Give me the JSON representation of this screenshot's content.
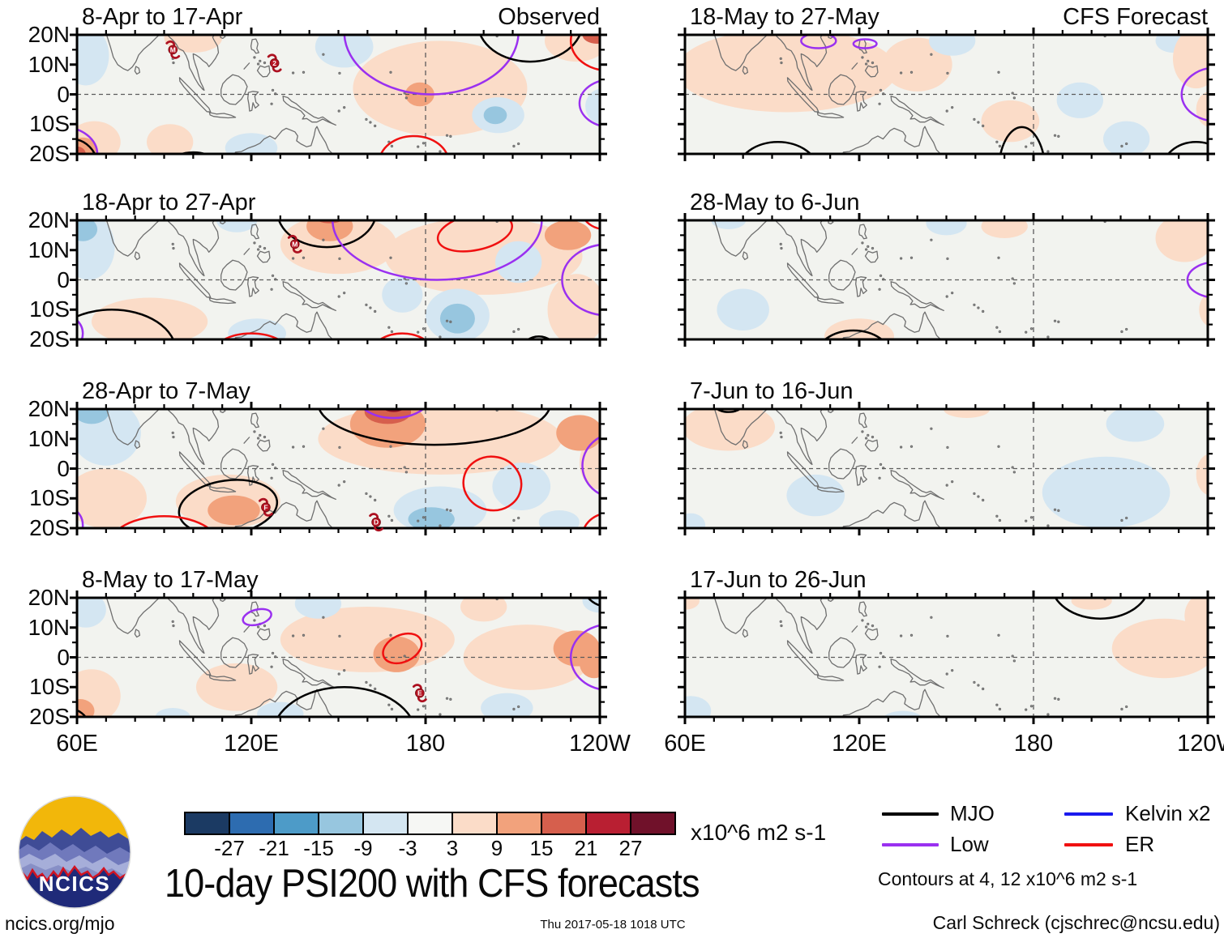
{
  "title": "10-day PSI200 with CFS forecasts",
  "header": {
    "observed_label": "Observed",
    "forecast_label": "CFS Forecast"
  },
  "logo": {
    "text": "NCICS"
  },
  "footer": {
    "left": "ncics.org/mjo",
    "center": "Thu 2017-05-18 1018 UTC",
    "right": "Carl Schreck (cjschrec@ncsu.edu)"
  },
  "colorbar": {
    "tick_values": [
      "-27",
      "-21",
      "-15",
      "-9",
      "-3",
      "3",
      "9",
      "15",
      "21",
      "27"
    ],
    "colors": [
      "#1b3a63",
      "#2d6cb0",
      "#4d9bc8",
      "#97c6df",
      "#d4e6f2",
      "#f6f7f4",
      "#fbdcc8",
      "#f2a27c",
      "#d65f4d",
      "#b91f32",
      "#70112a"
    ],
    "unit_label": "x10^6 m2 s-1"
  },
  "legend": {
    "items": [
      {
        "key": "mjo",
        "label": "MJO",
        "color": "#000000"
      },
      {
        "key": "low",
        "label": "Low",
        "color": "#9a30f0"
      },
      {
        "key": "kelvin",
        "label": "Kelvin x2",
        "color": "#1a1aee"
      },
      {
        "key": "er",
        "label": "ER",
        "color": "#f01010"
      }
    ],
    "note": "Contours at 4, 12 x10^6 m2 s-1"
  },
  "chart_data": {
    "type": "map_contour_small_multiples",
    "variable": "PSI200 anomaly",
    "units": "x10^6 m2 s-1",
    "lon_range": [
      60,
      240
    ],
    "lat_range": [
      -20,
      20
    ],
    "x_tick_labels": [
      "60E",
      "120E",
      "180",
      "120W"
    ],
    "x_tick_lons": [
      60,
      120,
      180,
      240
    ],
    "y_tick_labels": [
      "20N",
      "10N",
      "0",
      "10S",
      "20S"
    ],
    "y_tick_lats": [
      20,
      10,
      0,
      -10,
      -20
    ],
    "shade_colors": {
      "p1": "#fbdcc8",
      "p2": "#f2a27c",
      "p3": "#d65f4d",
      "p4": "#8c1127",
      "m1": "#d4e6f2",
      "m2": "#97c6df",
      "m3": "#4d9bc8"
    },
    "contour_colors": {
      "mjo": "#000000",
      "low": "#9a30f0",
      "kelvin": "#1a1aee",
      "er": "#f01010"
    },
    "panels": [
      {
        "title": "8-Apr to 17-Apr",
        "column": "observed",
        "row": 0,
        "fills": [
          [
            "m1",
            63,
            13,
            8,
            10,
            0
          ],
          [
            "p1",
            100,
            19,
            10,
            5,
            0
          ],
          [
            "p1",
            92,
            -16,
            8,
            6,
            0
          ],
          [
            "m1",
            152,
            16,
            10,
            7,
            0
          ],
          [
            "m1",
            120,
            -18,
            9,
            5,
            0
          ],
          [
            "p1",
            185,
            2,
            30,
            16,
            0
          ],
          [
            "p2",
            178,
            0,
            5,
            4,
            0
          ],
          [
            "m1",
            205,
            -7,
            9,
            6,
            0
          ],
          [
            "m2",
            204,
            -7,
            4,
            3,
            0
          ],
          [
            "p1",
            232,
            18,
            11,
            7,
            0
          ],
          [
            "p3",
            239,
            20,
            5,
            3,
            0
          ],
          [
            "m1",
            241,
            -4,
            6,
            6,
            0
          ],
          [
            "p1",
            66,
            -16,
            9,
            7,
            0
          ],
          [
            "p2",
            62,
            -18.5,
            5,
            4,
            0
          ],
          [
            "p3",
            60,
            -20,
            3,
            2.5,
            0
          ]
        ],
        "contours": [
          [
            "low",
            182,
            21,
            30,
            21,
            0
          ],
          [
            "mjo",
            216,
            24,
            18,
            13,
            0
          ],
          [
            "er",
            243,
            18,
            13,
            10,
            0
          ],
          [
            "low",
            244,
            -3,
            11,
            8,
            0
          ],
          [
            "er",
            176,
            -23,
            12,
            9,
            0
          ],
          [
            "mjo",
            58,
            -24,
            9,
            9,
            0
          ],
          [
            "low",
            55,
            -20,
            12,
            9,
            0
          ],
          [
            "mjo",
            100,
            -22.5,
            7,
            3,
            0
          ]
        ],
        "storms": [
          [
            "M",
            93,
            15
          ],
          [
            "2",
            128,
            10.5
          ]
        ]
      },
      {
        "title": "18-May to 27-May",
        "column": "forecast",
        "row": 0,
        "fills": [
          [
            "p1",
            95,
            8,
            38,
            14,
            0
          ],
          [
            "p1",
            140,
            10,
            12,
            9,
            0
          ],
          [
            "m1",
            152,
            18,
            8,
            5,
            0
          ],
          [
            "p1",
            172,
            -9,
            10,
            7,
            0
          ],
          [
            "m1",
            196,
            -2,
            8,
            6,
            0
          ],
          [
            "m1",
            212,
            -15,
            8,
            6,
            0
          ],
          [
            "m1",
            228,
            18,
            6,
            4,
            0
          ],
          [
            "p1",
            236,
            12,
            8,
            10,
            0
          ],
          [
            "p1",
            241,
            -5,
            5,
            6,
            0
          ]
        ],
        "contours": [
          [
            "low",
            106,
            18,
            6,
            2.5,
            0
          ],
          [
            "low",
            122,
            17,
            4,
            1.5,
            0
          ],
          [
            "low",
            243,
            0,
            12,
            9,
            0
          ],
          [
            "mjo",
            92,
            -26,
            14,
            10,
            0
          ],
          [
            "mjo",
            176,
            -26,
            8,
            15,
            0
          ],
          [
            "mjo",
            236,
            -26,
            12,
            10,
            0
          ]
        ],
        "storms": []
      },
      {
        "title": "18-Apr to 27-Apr",
        "column": "observed",
        "row": 1,
        "fills": [
          [
            "m1",
            64,
            11,
            9,
            11,
            0
          ],
          [
            "m2",
            62,
            17,
            5,
            4,
            0
          ],
          [
            "p1",
            85,
            -14,
            20,
            8,
            0
          ],
          [
            "m1",
            122,
            -18,
            10,
            5,
            0
          ],
          [
            "m1",
            115,
            20,
            7,
            4,
            0
          ],
          [
            "p1",
            150,
            12,
            20,
            10,
            0
          ],
          [
            "p2",
            147,
            18,
            8,
            5,
            0
          ],
          [
            "p3",
            147,
            21,
            5,
            2,
            0
          ],
          [
            "p1",
            200,
            8,
            34,
            13,
            0
          ],
          [
            "p1",
            232,
            -10,
            10,
            12,
            0
          ],
          [
            "p2",
            229,
            15,
            8,
            5,
            0
          ],
          [
            "m1",
            172,
            -5,
            7,
            6,
            0
          ],
          [
            "m1",
            191,
            -12,
            11,
            9,
            0
          ],
          [
            "m2",
            191,
            -13,
            6,
            5,
            0
          ],
          [
            "m1",
            212,
            6,
            8,
            7,
            0
          ]
        ],
        "contours": [
          [
            "mjo",
            146,
            23,
            17,
            12,
            0
          ],
          [
            "low",
            184,
            20,
            36,
            20,
            0
          ],
          [
            "low",
            243,
            0,
            16,
            12,
            0
          ],
          [
            "er",
            197,
            16,
            13,
            6,
            -12
          ],
          [
            "er",
            242,
            23,
            8,
            6,
            0
          ],
          [
            "mjo",
            72,
            -24,
            22,
            14,
            0
          ],
          [
            "low",
            53,
            -18,
            9,
            7,
            0
          ],
          [
            "er",
            120,
            -26,
            14,
            8,
            0
          ],
          [
            "er",
            172,
            -27,
            12,
            9,
            0
          ],
          [
            "mjo",
            219,
            -24,
            6,
            5,
            0
          ]
        ],
        "storms": [
          [
            "M",
            135,
            12
          ]
        ]
      },
      {
        "title": "28-May to 6-Jun",
        "column": "forecast",
        "row": 1,
        "fills": [
          [
            "m1",
            80,
            -10,
            9,
            7,
            0
          ],
          [
            "m1",
            75,
            20,
            6,
            3,
            0
          ],
          [
            "m1",
            150,
            19,
            7,
            4,
            0
          ],
          [
            "p1",
            120,
            -19,
            12,
            6,
            0
          ],
          [
            "p1",
            170,
            18,
            8,
            4,
            0
          ],
          [
            "p1",
            232,
            14,
            10,
            8,
            0
          ],
          [
            "p1",
            242,
            -10,
            5,
            6,
            0
          ]
        ],
        "contours": [
          [
            "mjo",
            118,
            -26,
            13,
            9,
            0
          ],
          [
            "low",
            243,
            0,
            10,
            6,
            0
          ]
        ],
        "storms": []
      },
      {
        "title": "28-Apr to 7-May",
        "column": "observed",
        "row": 2,
        "fills": [
          [
            "m1",
            70,
            12,
            12,
            11,
            0
          ],
          [
            "m2",
            65,
            19,
            6,
            4,
            0
          ],
          [
            "p1",
            70,
            -10,
            14,
            10,
            0
          ],
          [
            "p1",
            112,
            -11,
            18,
            9,
            0
          ],
          [
            "p2",
            114,
            -14,
            9,
            5,
            0
          ],
          [
            "p1",
            185,
            10,
            42,
            12,
            0
          ],
          [
            "p2",
            167,
            15,
            13,
            8,
            0
          ],
          [
            "p3",
            167,
            19,
            8,
            4,
            0
          ],
          [
            "p4",
            169,
            21,
            4,
            2,
            0
          ],
          [
            "p1",
            240,
            2,
            7,
            9,
            0
          ],
          [
            "p2",
            233,
            12,
            8,
            6,
            0
          ],
          [
            "m1",
            185,
            -14,
            16,
            8,
            0
          ],
          [
            "m2",
            182,
            -17,
            8,
            4,
            0
          ],
          [
            "m1",
            213,
            -6,
            10,
            8,
            0
          ],
          [
            "m1",
            226,
            -18,
            7,
            4,
            0
          ]
        ],
        "contours": [
          [
            "mjo",
            183,
            22,
            40,
            14,
            0
          ],
          [
            "low",
            169,
            25,
            13,
            8,
            0
          ],
          [
            "low",
            246,
            1,
            12,
            11,
            0
          ],
          [
            "low",
            54,
            -19,
            8,
            7,
            0
          ],
          [
            "mjo",
            112,
            -13,
            17,
            9,
            -8
          ],
          [
            "er",
            90,
            -26,
            19,
            10,
            0
          ],
          [
            "er",
            203,
            -5,
            10,
            9,
            12
          ],
          [
            "er",
            243,
            -23,
            9,
            8,
            0
          ]
        ],
        "storms": [
          [
            "F",
            125,
            -13
          ],
          [
            "D",
            163,
            -18
          ]
        ]
      },
      {
        "title": "7-Jun to 16-Jun",
        "column": "forecast",
        "row": 2,
        "fills": [
          [
            "p1",
            75,
            14,
            16,
            8,
            0
          ],
          [
            "m1",
            105,
            -9,
            10,
            7,
            0
          ],
          [
            "m1",
            62,
            -19,
            5,
            4,
            0
          ],
          [
            "p1",
            157,
            20,
            8,
            3,
            0
          ],
          [
            "m1",
            205,
            -8,
            22,
            12,
            0
          ],
          [
            "m1",
            215,
            15,
            10,
            6,
            0
          ],
          [
            "p1",
            241,
            -2,
            5,
            7,
            0
          ]
        ],
        "contours": [
          [
            "mjo",
            75,
            23,
            6,
            4,
            0
          ]
        ],
        "storms": []
      },
      {
        "title": "8-May to 17-May",
        "column": "observed",
        "row": 3,
        "fills": [
          [
            "m1",
            63,
            16,
            7,
            6,
            0
          ],
          [
            "p1",
            65,
            -13,
            10,
            9,
            0
          ],
          [
            "p2",
            61,
            -18,
            5,
            4,
            0
          ],
          [
            "m1",
            93,
            -20,
            6,
            3,
            0
          ],
          [
            "p1",
            115,
            -10,
            14,
            8,
            0
          ],
          [
            "m1",
            130,
            -19,
            8,
            4,
            0
          ],
          [
            "p1",
            160,
            6,
            30,
            11,
            0
          ],
          [
            "p2",
            170,
            1,
            8,
            6,
            0
          ],
          [
            "m1",
            143,
            18,
            8,
            5,
            0
          ],
          [
            "p1",
            215,
            0,
            22,
            11,
            0
          ],
          [
            "p2",
            232,
            3,
            8,
            6,
            0
          ],
          [
            "p2",
            238,
            -2,
            5,
            5,
            0
          ],
          [
            "m1",
            208,
            -17,
            9,
            5,
            0
          ],
          [
            "m1",
            240,
            19,
            6,
            4,
            0
          ],
          [
            "p1",
            200,
            17,
            8,
            5,
            0
          ]
        ],
        "contours": [
          [
            "low",
            122,
            13.5,
            5,
            2.5,
            -15
          ],
          [
            "er",
            172,
            3,
            7,
            4.5,
            -25
          ],
          [
            "low",
            243,
            0,
            13,
            11,
            0
          ],
          [
            "mjo",
            152,
            -27,
            25,
            17,
            0
          ],
          [
            "mjo",
            243,
            25,
            9,
            8,
            0
          ],
          [
            "mjo",
            56,
            -23,
            8,
            6,
            0
          ]
        ],
        "storms": [
          [
            "E",
            178,
            -12
          ]
        ]
      },
      {
        "title": "17-Jun to 26-Jun",
        "column": "forecast",
        "row": 3,
        "fills": [
          [
            "p1",
            60,
            19,
            5,
            3,
            0
          ],
          [
            "m1",
            62,
            -18,
            7,
            5,
            0
          ],
          [
            "m1",
            135,
            -21,
            7,
            3,
            0
          ],
          [
            "p1",
            200,
            19,
            7,
            3,
            0
          ],
          [
            "p1",
            225,
            3,
            18,
            10,
            0
          ],
          [
            "p1",
            240,
            14,
            8,
            8,
            0
          ]
        ],
        "contours": [
          [
            "mjo",
            203,
            25,
            17,
            12,
            0
          ]
        ],
        "storms": []
      }
    ]
  }
}
